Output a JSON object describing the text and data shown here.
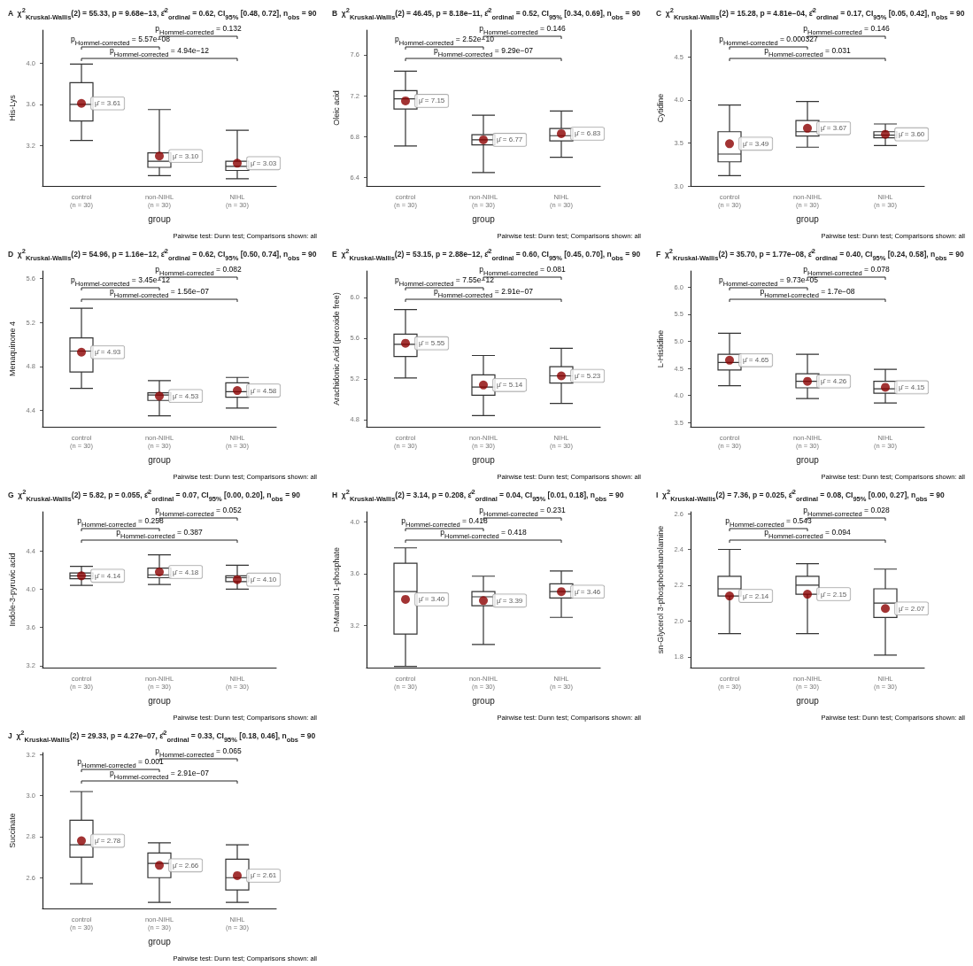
{
  "chart_data": [
    {
      "type": "box",
      "title": "A  χ$^{2}$$_{Kruskal-Wallis}$(2) = 55.33, p = 9.68e−13, ε̂$^{2}$$_{ordinal}$ = 0.62, CI$_{95%}$ [0.48, 0.72], n$_{obs}$ = 90",
      "xlabel": "group",
      "ylabel": "His-Lys",
      "categories": [
        "control\n(n = 30)",
        "non-NIHL\n(n = 30)",
        "NIHL\n(n = 30)"
      ],
      "ylim": [
        2.81,
        4.32
      ],
      "yticks": [
        3.2,
        3.6,
        {
          "value": 4,
          "label": "4.0"
        }
      ],
      "marker": "circle",
      "series": [
        {
          "type": "box",
          "color": "#333333",
          "boxes": [
            {
              "low": 3.25,
              "q1": 3.44,
              "median": 3.6,
              "q3": 3.81,
              "high": 3.99
            },
            {
              "low": 2.91,
              "q1": 2.99,
              "median": 3.05,
              "q3": 3.13,
              "high": 3.55
            },
            {
              "low": 2.88,
              "q1": 2.96,
              "median": 3.0,
              "q3": 3.05,
              "high": 3.35
            }
          ]
        },
        {
          "type": "scatter",
          "color": "#8b0000",
          "x": [
            "control\n(n = 30)",
            "non-NIHL\n(n = 30)",
            "NIHL\n(n = 30)"
          ],
          "values": [
            3.61,
            3.1,
            3.03
          ],
          "value_labels": [
            "μ̂ = 3.61",
            "μ̂ = 3.10",
            "μ̂ = 3.03"
          ]
        }
      ],
      "annotations": [
        "p$_{Hommel-corrected}$ = 5.57e−08",
        "p$_{Hommel-corrected}$ = 0.132",
        "p$_{Hommel-corrected}$ = 4.94e−12",
        "Pairwise test: Dunn test; Comparisons shown: all"
      ]
    },
    {
      "type": "box",
      "title": "B  χ$^{2}$$_{Kruskal-Wallis}$(2) = 46.45, p = 8.18e−11, ε̂$^{2}$$_{ordinal}$ = 0.52, CI$_{95%}$ [0.34, 0.69], n$_{obs}$ = 90",
      "xlabel": "group",
      "ylabel": "Oleic acid",
      "categories": [
        "control\n(n = 30)",
        "non-NIHL\n(n = 30)",
        "NIHL\n(n = 30)"
      ],
      "ylim": [
        6.32,
        7.84
      ],
      "yticks": [
        6.4,
        6.8,
        7.2,
        7.6
      ],
      "marker": "circle",
      "series": [
        {
          "type": "box",
          "color": "#333333",
          "boxes": [
            {
              "low": 6.71,
              "q1": 7.07,
              "median": 7.17,
              "q3": 7.25,
              "high": 7.44
            },
            {
              "low": 6.45,
              "q1": 6.72,
              "median": 6.77,
              "q3": 6.82,
              "high": 7.01
            },
            {
              "low": 6.6,
              "q1": 6.76,
              "median": 6.81,
              "q3": 6.88,
              "high": 7.05
            }
          ]
        },
        {
          "type": "scatter",
          "color": "#8b0000",
          "x": [
            "control\n(n = 30)",
            "non-NIHL\n(n = 30)",
            "NIHL\n(n = 30)"
          ],
          "values": [
            7.15,
            6.77,
            6.83
          ],
          "value_labels": [
            "μ̂ = 7.15",
            "μ̂ = 6.77",
            "μ̂ = 6.83"
          ]
        }
      ],
      "annotations": [
        "p$_{Hommel-corrected}$ = 2.52e−10",
        "p$_{Hommel-corrected}$ = 0.146",
        "p$_{Hommel-corrected}$ = 9.29e−07",
        "Pairwise test: Dunn test; Comparisons shown: all"
      ]
    },
    {
      "type": "box",
      "title": "C  χ$^{2}$$_{Kruskal-Wallis}$(2) = 15.28, p = 4.81e−04, ε̂$^{2}$$_{ordinal}$ = 0.17, CI$_{95%}$ [0.05, 0.42], n$_{obs}$ = 90",
      "xlabel": "group",
      "ylabel": "Cytidine",
      "categories": [
        "control\n(n = 30)",
        "non-NIHL\n(n = 30)",
        "NIHL\n(n = 30)"
      ],
      "ylim": [
        3.0,
        4.81
      ],
      "yticks": [
        {
          "value": 3,
          "label": "3.0"
        },
        3.5,
        {
          "value": 4,
          "label": "4.0"
        },
        4.5
      ],
      "marker": "circle",
      "series": [
        {
          "type": "box",
          "color": "#333333",
          "boxes": [
            {
              "low": 3.12,
              "q1": 3.28,
              "median": 3.37,
              "q3": 3.63,
              "high": 3.94
            },
            {
              "low": 3.45,
              "q1": 3.58,
              "median": 3.63,
              "q3": 3.76,
              "high": 3.98
            },
            {
              "low": 3.47,
              "q1": 3.56,
              "median": 3.59,
              "q3": 3.63,
              "high": 3.72
            }
          ]
        },
        {
          "type": "scatter",
          "color": "#8b0000",
          "x": [
            "control\n(n = 30)",
            "non-NIHL\n(n = 30)",
            "NIHL\n(n = 30)"
          ],
          "values": [
            3.49,
            3.67,
            3.6
          ],
          "value_labels": [
            "μ̂ = 3.49",
            "μ̂ = 3.67",
            "μ̂ = 3.60"
          ]
        }
      ],
      "annotations": [
        "p$_{Hommel-corrected}$ = 0.000327",
        "p$_{Hommel-corrected}$ = 0.146",
        "p$_{Hommel-corrected}$ = 0.031",
        "Pairwise test: Dunn test; Comparisons shown: all"
      ]
    },
    {
      "type": "box",
      "title": "D  χ$^{2}$$_{Kruskal-Wallis}$(2) = 54.96, p = 1.16e−12, ε̂$^{2}$$_{ordinal}$ = 0.62, CI$_{95%}$ [0.50, 0.74], n$_{obs}$ = 90",
      "xlabel": "group",
      "ylabel": "Menaquinone 4",
      "categories": [
        "control\n(n = 30)",
        "non-NIHL\n(n = 30)",
        "NIHL\n(n = 30)"
      ],
      "ylim": [
        4.25,
        5.67
      ],
      "yticks": [
        4.4,
        4.8,
        5.2,
        5.6
      ],
      "marker": "circle",
      "series": [
        {
          "type": "box",
          "color": "#333333",
          "boxes": [
            {
              "low": 4.6,
              "q1": 4.75,
              "median": 4.94,
              "q3": 5.06,
              "high": 5.33
            },
            {
              "low": 4.35,
              "q1": 4.49,
              "median": 4.54,
              "q3": 4.56,
              "high": 4.67
            },
            {
              "low": 4.42,
              "q1": 4.52,
              "median": 4.57,
              "q3": 4.65,
              "high": 4.7
            }
          ]
        },
        {
          "type": "scatter",
          "color": "#8b0000",
          "x": [
            "control\n(n = 30)",
            "non-NIHL\n(n = 30)",
            "NIHL\n(n = 30)"
          ],
          "values": [
            4.93,
            4.53,
            4.58
          ],
          "value_labels": [
            "μ̂ = 4.93",
            "μ̂ = 4.53",
            "μ̂ = 4.58"
          ]
        }
      ],
      "annotations": [
        "p$_{Hommel-corrected}$ = 3.45e−12",
        "p$_{Hommel-corrected}$ = 0.082",
        "p$_{Hommel-corrected}$ = 1.56e−07",
        "Pairwise test: Dunn test; Comparisons shown: all"
      ]
    },
    {
      "type": "box",
      "title": "E  χ$^{2}$$_{Kruskal-Wallis}$(2) = 53.15, p = 2.88e−12, ε̂$^{2}$$_{ordinal}$ = 0.60, CI$_{95%}$ [0.45, 0.70], n$_{obs}$ = 90",
      "xlabel": "group",
      "ylabel": "Arachidonic Acid (peroxide free)",
      "categories": [
        "control\n(n = 30)",
        "non-NIHL\n(n = 30)",
        "NIHL\n(n = 30)"
      ],
      "ylim": [
        4.73,
        6.26
      ],
      "yticks": [
        4.8,
        5.2,
        5.6,
        {
          "value": 6,
          "label": "6.0"
        }
      ],
      "marker": "circle",
      "series": [
        {
          "type": "box",
          "color": "#333333",
          "boxes": [
            {
              "low": 5.21,
              "q1": 5.42,
              "median": 5.54,
              "q3": 5.64,
              "high": 5.88
            },
            {
              "low": 4.84,
              "q1": 5.04,
              "median": 5.12,
              "q3": 5.24,
              "high": 5.43
            },
            {
              "low": 4.96,
              "q1": 5.16,
              "median": 5.23,
              "q3": 5.32,
              "high": 5.5
            }
          ]
        },
        {
          "type": "scatter",
          "color": "#8b0000",
          "x": [
            "control\n(n = 30)",
            "non-NIHL\n(n = 30)",
            "NIHL\n(n = 30)"
          ],
          "values": [
            5.55,
            5.14,
            5.23
          ],
          "value_labels": [
            "μ̂ = 5.55",
            "μ̂ = 5.14",
            "μ̂ = 5.23"
          ]
        }
      ],
      "annotations": [
        "p$_{Hommel-corrected}$ = 7.55e−12",
        "p$_{Hommel-corrected}$ = 0.081",
        "p$_{Hommel-corrected}$ = 2.91e−07",
        "Pairwise test: Dunn test; Comparisons shown: all"
      ]
    },
    {
      "type": "box",
      "title": "F  χ$^{2}$$_{Kruskal-Wallis}$(2) = 35.70, p = 1.77e−08, ε̂$^{2}$$_{ordinal}$ = 0.40, CI$_{95%}$ [0.24, 0.58], n$_{obs}$ = 90",
      "xlabel": "group",
      "ylabel": "L-Histidine",
      "categories": [
        "control\n(n = 30)",
        "non-NIHL\n(n = 30)",
        "NIHL\n(n = 30)"
      ],
      "ylim": [
        3.42,
        6.3
      ],
      "yticks": [
        3.5,
        {
          "value": 4,
          "label": "4.0"
        },
        4.5,
        {
          "value": 5,
          "label": "5.0"
        },
        5.5,
        {
          "value": 6,
          "label": "6.0"
        }
      ],
      "marker": "circle",
      "series": [
        {
          "type": "box",
          "color": "#333333",
          "boxes": [
            {
              "low": 4.18,
              "q1": 4.47,
              "median": 4.61,
              "q3": 4.76,
              "high": 5.15
            },
            {
              "low": 3.94,
              "q1": 4.14,
              "median": 4.26,
              "q3": 4.4,
              "high": 4.76
            },
            {
              "low": 3.86,
              "q1": 4.04,
              "median": 4.12,
              "q3": 4.26,
              "high": 4.48
            }
          ]
        },
        {
          "type": "scatter",
          "color": "#8b0000",
          "x": [
            "control\n(n = 30)",
            "non-NIHL\n(n = 30)",
            "NIHL\n(n = 30)"
          ],
          "values": [
            4.65,
            4.26,
            4.15
          ],
          "value_labels": [
            "μ̂ = 4.65",
            "μ̂ = 4.26",
            "μ̂ = 4.15"
          ]
        }
      ],
      "annotations": [
        "p$_{Hommel-corrected}$ = 9.73e−05",
        "p$_{Hommel-corrected}$ = 0.078",
        "p$_{Hommel-corrected}$ = 1.7e−08",
        "Pairwise test: Dunn test; Comparisons shown: all"
      ]
    },
    {
      "type": "box",
      "title": "G  χ$^{2}$$_{Kruskal-Wallis}$(2) = 5.82, p = 0.055, ε̂$^{2}$$_{ordinal}$ = 0.07, CI$_{95%}$ [0.00, 0.20], n$_{obs}$ = 90",
      "xlabel": "group",
      "ylabel": "Indole-3-pyruvic acid",
      "categories": [
        "control\n(n = 30)",
        "non-NIHL\n(n = 30)",
        "NIHL\n(n = 30)"
      ],
      "ylim": [
        3.18,
        4.81
      ],
      "yticks": [
        3.2,
        3.6,
        {
          "value": 4,
          "label": "4.0"
        },
        4.4
      ],
      "marker": "circle",
      "series": [
        {
          "type": "box",
          "color": "#333333",
          "boxes": [
            {
              "low": 4.04,
              "q1": 4.11,
              "median": 4.14,
              "q3": 4.17,
              "high": 4.24
            },
            {
              "low": 4.05,
              "q1": 4.12,
              "median": 4.15,
              "q3": 4.22,
              "high": 4.36
            },
            {
              "low": 4.0,
              "q1": 4.08,
              "median": 4.12,
              "q3": 4.14,
              "high": 4.25
            }
          ]
        },
        {
          "type": "scatter",
          "color": "#8b0000",
          "x": [
            "control\n(n = 30)",
            "non-NIHL\n(n = 30)",
            "NIHL\n(n = 30)"
          ],
          "values": [
            4.14,
            4.18,
            4.1
          ],
          "value_labels": [
            "μ̂ = 4.14",
            "μ̂ = 4.18",
            "μ̂ = 4.10"
          ]
        }
      ],
      "annotations": [
        "p$_{Hommel-corrected}$ = 0.258",
        "p$_{Hommel-corrected}$ = 0.052",
        "p$_{Hommel-corrected}$ = 0.387",
        "Pairwise test: Dunn test; Comparisons shown: all"
      ]
    },
    {
      "type": "box",
      "title": "H  χ$^{2}$$_{Kruskal-Wallis}$(2) = 3.14, p = 0.208, ε̂$^{2}$$_{ordinal}$ = 0.04, CI$_{95%}$ [0.01, 0.18], n$_{obs}$ = 90",
      "xlabel": "group",
      "ylabel": "D-Mannitol 1-phosphate",
      "categories": [
        "control\n(n = 30)",
        "non-NIHL\n(n = 30)",
        "NIHL\n(n = 30)"
      ],
      "ylim": [
        2.87,
        4.08
      ],
      "yticks": [
        3.2,
        3.6,
        {
          "value": 4,
          "label": "4.0"
        }
      ],
      "marker": "circle",
      "series": [
        {
          "type": "box",
          "color": "#333333",
          "boxes": [
            {
              "low": 2.88,
              "q1": 3.13,
              "median": 3.46,
              "q3": 3.68,
              "high": 3.8
            },
            {
              "low": 3.05,
              "q1": 3.35,
              "median": 3.42,
              "q3": 3.46,
              "high": 3.58
            },
            {
              "low": 3.26,
              "q1": 3.41,
              "median": 3.46,
              "q3": 3.52,
              "high": 3.62
            }
          ]
        },
        {
          "type": "scatter",
          "color": "#8b0000",
          "x": [
            "control\n(n = 30)",
            "non-NIHL\n(n = 30)",
            "NIHL\n(n = 30)"
          ],
          "values": [
            3.4,
            3.39,
            3.46
          ],
          "value_labels": [
            "μ̂ = 3.40",
            "μ̂ = 3.39",
            "μ̂ = 3.46"
          ]
        }
      ],
      "annotations": [
        "p$_{Hommel-corrected}$ = 0.418",
        "p$_{Hommel-corrected}$ = 0.231",
        "p$_{Hommel-corrected}$ = 0.418",
        "Pairwise test: Dunn test; Comparisons shown: all"
      ]
    },
    {
      "type": "box",
      "title": "I  χ$^{2}$$_{Kruskal-Wallis}$(2) = 7.36, p = 0.025, ε̂$^{2}$$_{ordinal}$ = 0.08, CI$_{95%}$ [0.00, 0.27], n$_{obs}$ = 90",
      "xlabel": "group",
      "ylabel": "sn-Glycerol 3-phosphoethanolamine",
      "categories": [
        "control\n(n = 30)",
        "non-NIHL\n(n = 30)",
        "NIHL\n(n = 30)"
      ],
      "ylim": [
        1.74,
        2.61
      ],
      "yticks": [
        1.8,
        {
          "value": 2,
          "label": "2.0"
        },
        2.2,
        2.4,
        2.6
      ],
      "marker": "circle",
      "series": [
        {
          "type": "box",
          "color": "#333333",
          "boxes": [
            {
              "low": 1.93,
              "q1": 2.14,
              "median": 2.18,
              "q3": 2.25,
              "high": 2.4
            },
            {
              "low": 1.93,
              "q1": 2.15,
              "median": 2.2,
              "q3": 2.25,
              "high": 2.32
            },
            {
              "low": 1.81,
              "q1": 2.02,
              "median": 2.1,
              "q3": 2.18,
              "high": 2.29
            }
          ]
        },
        {
          "type": "scatter",
          "color": "#8b0000",
          "x": [
            "control\n(n = 30)",
            "non-NIHL\n(n = 30)",
            "NIHL\n(n = 30)"
          ],
          "values": [
            2.14,
            2.15,
            2.07
          ],
          "value_labels": [
            "μ̂ = 2.14",
            "μ̂ = 2.15",
            "μ̂ = 2.07"
          ]
        }
      ],
      "annotations": [
        "p$_{Hommel-corrected}$ = 0.543",
        "p$_{Hommel-corrected}$ = 0.028",
        "p$_{Hommel-corrected}$ = 0.094",
        "Pairwise test: Dunn test; Comparisons shown: all"
      ]
    },
    {
      "type": "box",
      "title": "J  χ$^{2}$$_{Kruskal-Wallis}$(2) = 29.33, p = 4.27e−07, ε̂$^{2}$$_{ordinal}$ = 0.33, CI$_{95%}$ [0.18, 0.46], n$_{obs}$ = 90",
      "xlabel": "group",
      "ylabel": "Succinate",
      "categories": [
        "control\n(n = 30)",
        "non-NIHL\n(n = 30)",
        "NIHL\n(n = 30)"
      ],
      "ylim": [
        2.45,
        3.21
      ],
      "yticks": [
        2.6,
        2.8,
        {
          "value": 3,
          "label": "3.0"
        },
        3.2
      ],
      "marker": "circle",
      "series": [
        {
          "type": "box",
          "color": "#333333",
          "boxes": [
            {
              "low": 2.57,
              "q1": 2.7,
              "median": 2.76,
              "q3": 2.88,
              "high": 3.02
            },
            {
              "low": 2.48,
              "q1": 2.6,
              "median": 2.67,
              "q3": 2.72,
              "high": 2.77
            },
            {
              "low": 2.48,
              "q1": 2.54,
              "median": 2.6,
              "q3": 2.69,
              "high": 2.76
            }
          ]
        },
        {
          "type": "scatter",
          "color": "#8b0000",
          "x": [
            "control\n(n = 30)",
            "non-NIHL\n(n = 30)",
            "NIHL\n(n = 30)"
          ],
          "values": [
            2.78,
            2.66,
            2.61
          ],
          "value_labels": [
            "μ̂ = 2.78",
            "μ̂ = 2.66",
            "μ̂ = 2.61"
          ]
        }
      ],
      "annotations": [
        "p$_{Hommel-corrected}$ = 0.001",
        "p$_{Hommel-corrected}$ = 0.065",
        "p$_{Hommel-corrected}$ = 2.91e−07",
        "Pairwise test: Dunn test; Comparisons shown: all"
      ]
    }
  ]
}
